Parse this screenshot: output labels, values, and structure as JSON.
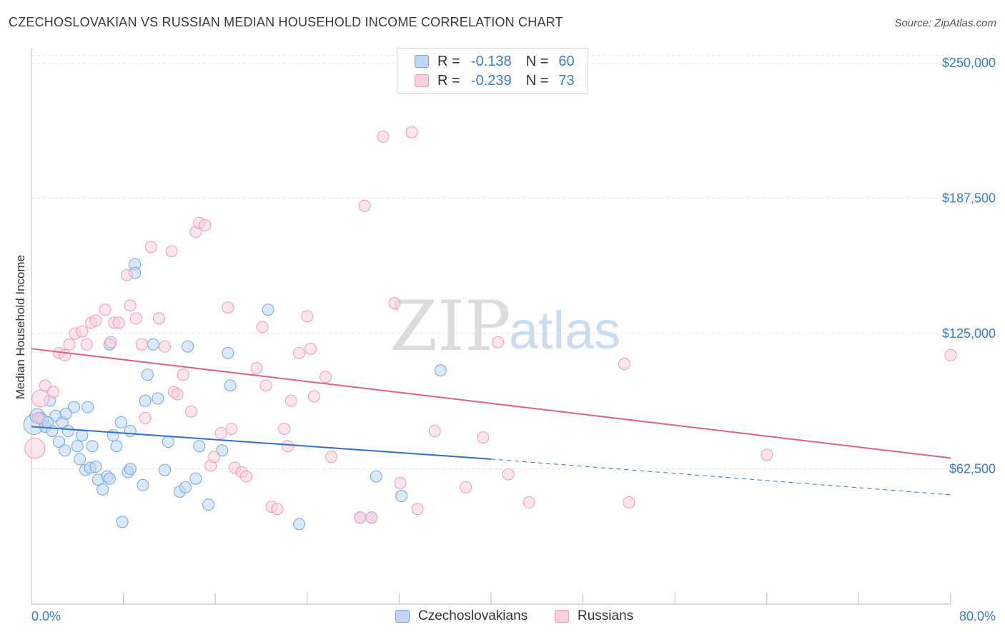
{
  "header": {
    "title": "CZECHOSLOVAKIAN VS RUSSIAN MEDIAN HOUSEHOLD INCOME CORRELATION CHART",
    "source": "Source: ZipAtlas.com"
  },
  "watermark": {
    "zip": "ZIP",
    "atlas": "atlas"
  },
  "legend": {
    "rows": [
      {
        "r_label": "R =",
        "r_value": "-0.138",
        "n_label": "N =",
        "n_value": "60",
        "color": "#6fa8e8"
      },
      {
        "r_label": "R =",
        "r_value": "-0.239",
        "n_label": "N =",
        "n_value": "73",
        "color": "#f29bb8"
      }
    ]
  },
  "bottom_legend": {
    "items": [
      {
        "label": "Czechoslovakians",
        "color": "#6fa8e8"
      },
      {
        "label": "Russians",
        "color": "#f29bb8"
      }
    ]
  },
  "chart_data": {
    "type": "scatter",
    "title": "CZECHOSLOVAKIAN VS RUSSIAN MEDIAN HOUSEHOLD INCOME CORRELATION CHART",
    "xlabel": "",
    "ylabel": "Median Household Income",
    "xlim": [
      0,
      80
    ],
    "ylim": [
      0,
      256000
    ],
    "x_tick_labels": [
      "0.0%",
      "80.0%"
    ],
    "y_ticks": [
      62500,
      125000,
      187500,
      250000
    ],
    "y_tick_labels": [
      "$62,500",
      "$125,000",
      "$187,500",
      "$250,000"
    ],
    "grid": true,
    "series": [
      {
        "name": "Czechoslovakians",
        "color": "#6fa8e8",
        "line_color": "#2f6fd0",
        "trend": {
          "x1": 0,
          "y1": 82000,
          "x2": 40,
          "y2": 67000,
          "dash_to_x": 80,
          "dash_to_y": 50500
        },
        "points": [
          [
            0.2,
            83000,
            14
          ],
          [
            0.5,
            87000,
            10
          ],
          [
            0.8,
            86000,
            8
          ],
          [
            1.0,
            85000,
            8
          ],
          [
            1.2,
            82000,
            8
          ],
          [
            1.6,
            94000,
            8
          ],
          [
            1.8,
            80000,
            8
          ],
          [
            2.1,
            87000,
            8
          ],
          [
            2.4,
            75000,
            8
          ],
          [
            2.7,
            84000,
            8
          ],
          [
            2.9,
            71000,
            8
          ],
          [
            3.2,
            80000,
            8
          ],
          [
            3.7,
            91000,
            8
          ],
          [
            4.0,
            73000,
            8
          ],
          [
            4.2,
            67000,
            8
          ],
          [
            4.4,
            78000,
            8
          ],
          [
            4.7,
            62000,
            8
          ],
          [
            4.9,
            91000,
            8
          ],
          [
            5.1,
            63000,
            8
          ],
          [
            5.3,
            73000,
            8
          ],
          [
            5.6,
            63500,
            8
          ],
          [
            5.8,
            57500,
            8
          ],
          [
            6.2,
            53000,
            8
          ],
          [
            6.6,
            59000,
            8
          ],
          [
            6.8,
            58000,
            8
          ],
          [
            6.8,
            120000,
            8
          ],
          [
            7.1,
            78000,
            8
          ],
          [
            7.4,
            73000,
            8
          ],
          [
            7.8,
            84000,
            8
          ],
          [
            7.9,
            38000,
            8
          ],
          [
            8.4,
            61000,
            8
          ],
          [
            8.6,
            62500,
            8
          ],
          [
            8.6,
            80000,
            8
          ],
          [
            9.0,
            157000,
            8
          ],
          [
            9.0,
            153000,
            8
          ],
          [
            9.7,
            55000,
            8
          ],
          [
            9.9,
            94000,
            8
          ],
          [
            10.1,
            106000,
            8
          ],
          [
            10.6,
            120000,
            8
          ],
          [
            11.0,
            95000,
            8
          ],
          [
            11.6,
            62000,
            8
          ],
          [
            11.9,
            75000,
            8
          ],
          [
            12.9,
            52000,
            8
          ],
          [
            13.4,
            54000,
            8
          ],
          [
            13.6,
            119000,
            8
          ],
          [
            14.3,
            58000,
            8
          ],
          [
            14.6,
            73000,
            8
          ],
          [
            15.4,
            46000,
            8
          ],
          [
            16.6,
            71000,
            8
          ],
          [
            17.1,
            116000,
            8
          ],
          [
            17.3,
            101000,
            8
          ],
          [
            20.6,
            136000,
            8
          ],
          [
            23.3,
            37000,
            8
          ],
          [
            28.6,
            40000,
            8
          ],
          [
            29.6,
            40000,
            8
          ],
          [
            30.0,
            59000,
            8
          ],
          [
            32.2,
            50000,
            8
          ],
          [
            35.6,
            108000,
            8
          ],
          [
            3.0,
            88000,
            8
          ],
          [
            1.4,
            84000,
            8
          ]
        ]
      },
      {
        "name": "Russians",
        "color": "#f29bb8",
        "line_color": "#e0608a",
        "trend": {
          "x1": 0,
          "y1": 118000,
          "x2": 80,
          "y2": 67500
        },
        "points": [
          [
            0.3,
            72000,
            14
          ],
          [
            0.8,
            95000,
            12
          ],
          [
            1.2,
            101000,
            8
          ],
          [
            1.9,
            98000,
            8
          ],
          [
            2.4,
            116000,
            8
          ],
          [
            2.9,
            115000,
            8
          ],
          [
            3.3,
            120000,
            8
          ],
          [
            3.8,
            125000,
            8
          ],
          [
            4.4,
            126000,
            8
          ],
          [
            4.8,
            120000,
            8
          ],
          [
            5.2,
            130000,
            8
          ],
          [
            5.6,
            131000,
            8
          ],
          [
            6.4,
            136000,
            8
          ],
          [
            6.9,
            121000,
            8
          ],
          [
            7.2,
            130000,
            8
          ],
          [
            7.6,
            130000,
            8
          ],
          [
            8.3,
            152000,
            8
          ],
          [
            8.6,
            138000,
            8
          ],
          [
            9.1,
            132000,
            8
          ],
          [
            9.6,
            120000,
            8
          ],
          [
            9.9,
            86000,
            8
          ],
          [
            10.4,
            165000,
            8
          ],
          [
            11.1,
            132000,
            8
          ],
          [
            11.6,
            119000,
            8
          ],
          [
            12.2,
            163000,
            8
          ],
          [
            12.4,
            98000,
            8
          ],
          [
            12.7,
            97000,
            8
          ],
          [
            13.2,
            106000,
            8
          ],
          [
            13.9,
            89000,
            8
          ],
          [
            14.3,
            172000,
            8
          ],
          [
            14.6,
            176000,
            8
          ],
          [
            15.1,
            175000,
            8
          ],
          [
            15.6,
            64000,
            8
          ],
          [
            15.9,
            68000,
            8
          ],
          [
            16.5,
            79000,
            8
          ],
          [
            17.1,
            137000,
            8
          ],
          [
            17.4,
            81000,
            8
          ],
          [
            17.7,
            63000,
            8
          ],
          [
            18.3,
            61000,
            8
          ],
          [
            18.7,
            59000,
            8
          ],
          [
            19.6,
            109000,
            8
          ],
          [
            20.1,
            128000,
            8
          ],
          [
            20.4,
            101000,
            8
          ],
          [
            20.9,
            45000,
            8
          ],
          [
            21.4,
            44000,
            8
          ],
          [
            22.0,
            81000,
            8
          ],
          [
            22.3,
            73000,
            8
          ],
          [
            22.6,
            94000,
            8
          ],
          [
            23.3,
            116000,
            8
          ],
          [
            24.0,
            133000,
            8
          ],
          [
            24.3,
            118000,
            8
          ],
          [
            24.6,
            96000,
            8
          ],
          [
            25.6,
            105000,
            8
          ],
          [
            26.1,
            68000,
            8
          ],
          [
            28.6,
            40000,
            8
          ],
          [
            29.6,
            40000,
            8
          ],
          [
            30.6,
            216000,
            8
          ],
          [
            31.6,
            139000,
            8
          ],
          [
            32.1,
            56000,
            8
          ],
          [
            33.1,
            218000,
            8
          ],
          [
            33.6,
            44000,
            8
          ],
          [
            35.1,
            80000,
            8
          ],
          [
            29.0,
            184000,
            8
          ],
          [
            37.8,
            54000,
            8
          ],
          [
            39.3,
            77000,
            8
          ],
          [
            40.6,
            121000,
            8
          ],
          [
            41.5,
            60000,
            8
          ],
          [
            43.3,
            47000,
            8
          ],
          [
            51.6,
            111000,
            8
          ],
          [
            52.0,
            47000,
            8
          ],
          [
            64.0,
            69000,
            8
          ],
          [
            80.0,
            115000,
            8
          ],
          [
            0.6,
            86000,
            8
          ]
        ]
      }
    ]
  }
}
